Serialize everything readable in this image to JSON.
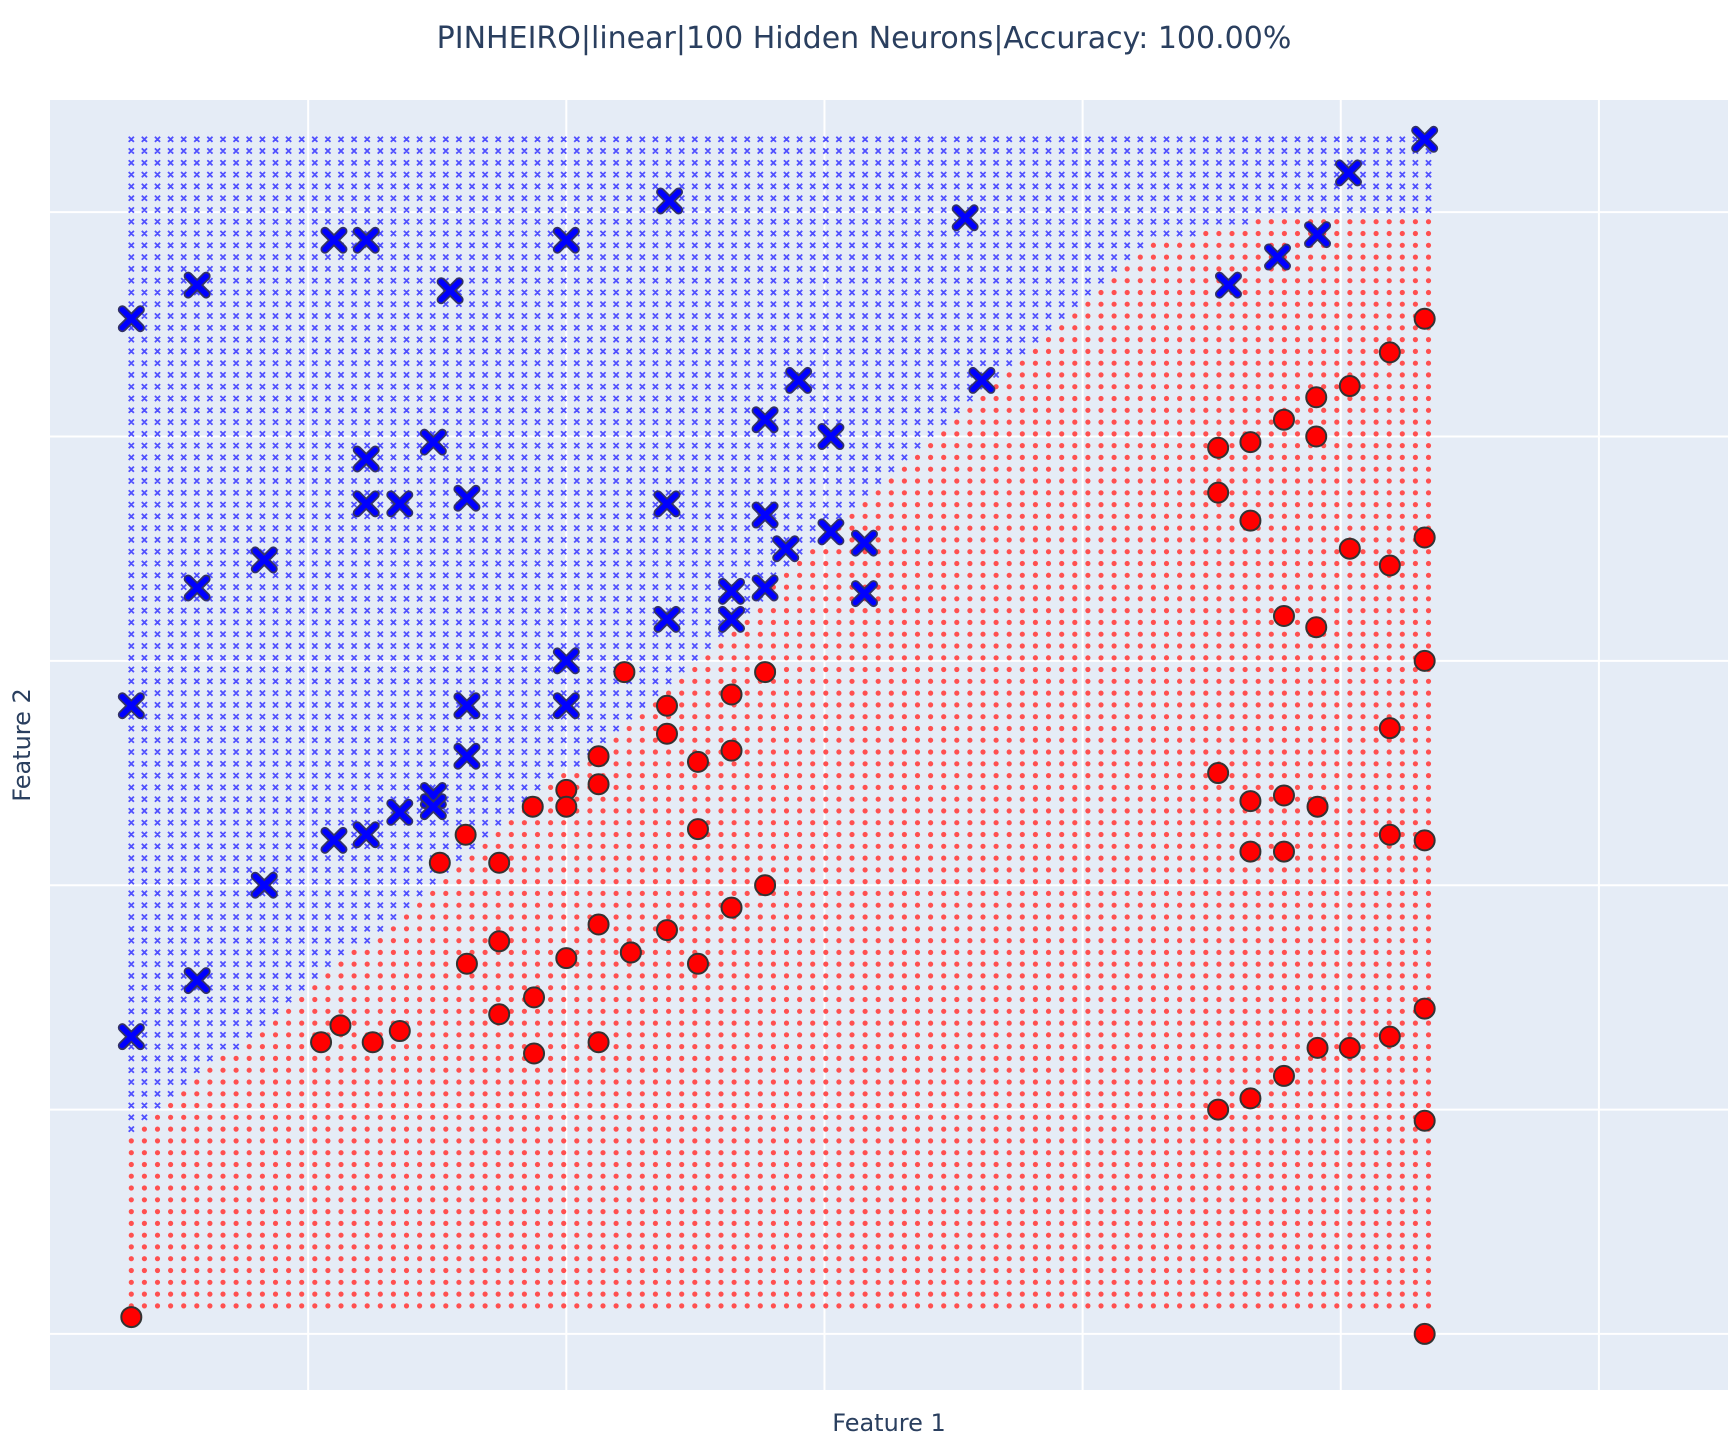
{
  "chart_data": {
    "type": "scatter",
    "title": "PINHEIRO|linear|100 Hidden Neurons|Accuracy: 100.00%",
    "xlabel": "Feature 1",
    "ylabel": "Feature 2",
    "xlim": [
      -0.2,
      1.1
    ],
    "ylim": [
      -0.05,
      1.1
    ],
    "grid": true,
    "grid_x": [
      0,
      0.2,
      0.4,
      0.6,
      0.8,
      1.0
    ],
    "grid_y": [
      0,
      0.2,
      0.4,
      0.6,
      0.8,
      1.0
    ],
    "tick_labels_shown": false,
    "decision_region": {
      "x_range": [
        -0.137,
        0.868
      ],
      "y_range": [
        0.025,
        1.065
      ],
      "steps": 100,
      "boundary_points": [
        [
          -0.137,
          0.18
        ],
        [
          0.1,
          0.4
        ],
        [
          0.3,
          0.6
        ],
        [
          0.5,
          0.82
        ],
        [
          0.65,
          0.97
        ],
        [
          0.765,
          1.0
        ]
      ],
      "class_above": "X",
      "class_below": "O",
      "colors": {
        "X": "#5050ff",
        "O": "#ff5050"
      }
    },
    "series": [
      {
        "symbol": "x",
        "color": "#0000ff",
        "points": [
          [
            0.865,
            1.065
          ],
          [
            0.806,
            1.035
          ],
          [
            -0.137,
            0.905
          ],
          [
            -0.086,
            0.935
          ],
          [
            0.02,
            0.975
          ],
          [
            0.045,
            0.975
          ],
          [
            0.2,
            0.975
          ],
          [
            0.28,
            1.01
          ],
          [
            0.509,
            0.995
          ],
          [
            0.713,
            0.935
          ],
          [
            0.751,
            0.96
          ],
          [
            0.782,
            0.98
          ],
          [
            0.11,
            0.93
          ],
          [
            0.045,
            0.78
          ],
          [
            0.045,
            0.74
          ],
          [
            0.071,
            0.74
          ],
          [
            0.097,
            0.795
          ],
          [
            0.123,
            0.745
          ],
          [
            0.354,
            0.815
          ],
          [
            0.278,
            0.74
          ],
          [
            0.354,
            0.73
          ],
          [
            0.354,
            0.665
          ],
          [
            0.37,
            0.7
          ],
          [
            0.405,
            0.715
          ],
          [
            0.431,
            0.705
          ],
          [
            0.431,
            0.66
          ],
          [
            0.522,
            0.85
          ],
          [
            -0.137,
            0.56
          ],
          [
            -0.086,
            0.665
          ],
          [
            -0.034,
            0.69
          ],
          [
            0.2,
            0.6
          ],
          [
            0.2,
            0.56
          ],
          [
            0.278,
            0.637
          ],
          [
            0.328,
            0.662
          ],
          [
            0.328,
            0.637
          ],
          [
            0.123,
            0.56
          ],
          [
            0.123,
            0.515
          ],
          [
            0.097,
            0.48
          ],
          [
            0.097,
            0.47
          ],
          [
            0.071,
            0.465
          ],
          [
            -0.034,
            0.4
          ],
          [
            -0.086,
            0.315
          ],
          [
            -0.137,
            0.265
          ],
          [
            0.045,
            0.445
          ],
          [
            0.02,
            0.44
          ],
          [
            0.405,
            0.8
          ],
          [
            0.38,
            0.85
          ]
        ]
      },
      {
        "symbol": "circle",
        "color": "#ff0000",
        "points": [
          [
            0.865,
            0.905
          ],
          [
            0.838,
            0.875
          ],
          [
            0.781,
            0.835
          ],
          [
            0.807,
            0.845
          ],
          [
            0.756,
            0.815
          ],
          [
            0.705,
            0.79
          ],
          [
            0.73,
            0.795
          ],
          [
            0.781,
            0.8
          ],
          [
            0.705,
            0.75
          ],
          [
            0.73,
            0.725
          ],
          [
            0.807,
            0.7
          ],
          [
            0.865,
            0.71
          ],
          [
            0.838,
            0.685
          ],
          [
            0.756,
            0.64
          ],
          [
            0.781,
            0.63
          ],
          [
            0.865,
            0.6
          ],
          [
            0.838,
            0.54
          ],
          [
            0.865,
            0.44
          ],
          [
            0.838,
            0.445
          ],
          [
            0.782,
            0.47
          ],
          [
            0.756,
            0.48
          ],
          [
            0.705,
            0.5
          ],
          [
            0.73,
            0.475
          ],
          [
            0.73,
            0.43
          ],
          [
            0.756,
            0.43
          ],
          [
            0.865,
            0.29
          ],
          [
            0.838,
            0.265
          ],
          [
            0.782,
            0.255
          ],
          [
            0.807,
            0.255
          ],
          [
            0.756,
            0.23
          ],
          [
            0.73,
            0.21
          ],
          [
            0.705,
            0.2
          ],
          [
            0.865,
            0.19
          ],
          [
            0.865,
            0.0
          ],
          [
            0.354,
            0.59
          ],
          [
            0.328,
            0.57
          ],
          [
            0.278,
            0.535
          ],
          [
            0.302,
            0.51
          ],
          [
            0.328,
            0.52
          ],
          [
            0.225,
            0.515
          ],
          [
            0.2,
            0.485
          ],
          [
            0.225,
            0.49
          ],
          [
            0.2,
            0.47
          ],
          [
            0.302,
            0.45
          ],
          [
            0.354,
            0.4
          ],
          [
            0.328,
            0.38
          ],
          [
            0.278,
            0.36
          ],
          [
            0.225,
            0.365
          ],
          [
            0.302,
            0.33
          ],
          [
            0.2,
            0.335
          ],
          [
            0.25,
            0.34
          ],
          [
            0.175,
            0.3
          ],
          [
            0.123,
            0.33
          ],
          [
            0.148,
            0.285
          ],
          [
            0.25,
            0.34
          ],
          [
            0.175,
            0.25
          ],
          [
            0.025,
            0.275
          ],
          [
            0.05,
            0.26
          ],
          [
            0.071,
            0.27
          ],
          [
            0.122,
            0.445
          ],
          [
            0.148,
            0.35
          ],
          [
            0.148,
            0.42
          ],
          [
            -0.137,
            0.015
          ],
          [
            0.01,
            0.26
          ],
          [
            0.225,
            0.26
          ],
          [
            0.102,
            0.42
          ],
          [
            0.174,
            0.47
          ],
          [
            0.245,
            0.59
          ],
          [
            0.278,
            0.56
          ]
        ]
      }
    ]
  }
}
